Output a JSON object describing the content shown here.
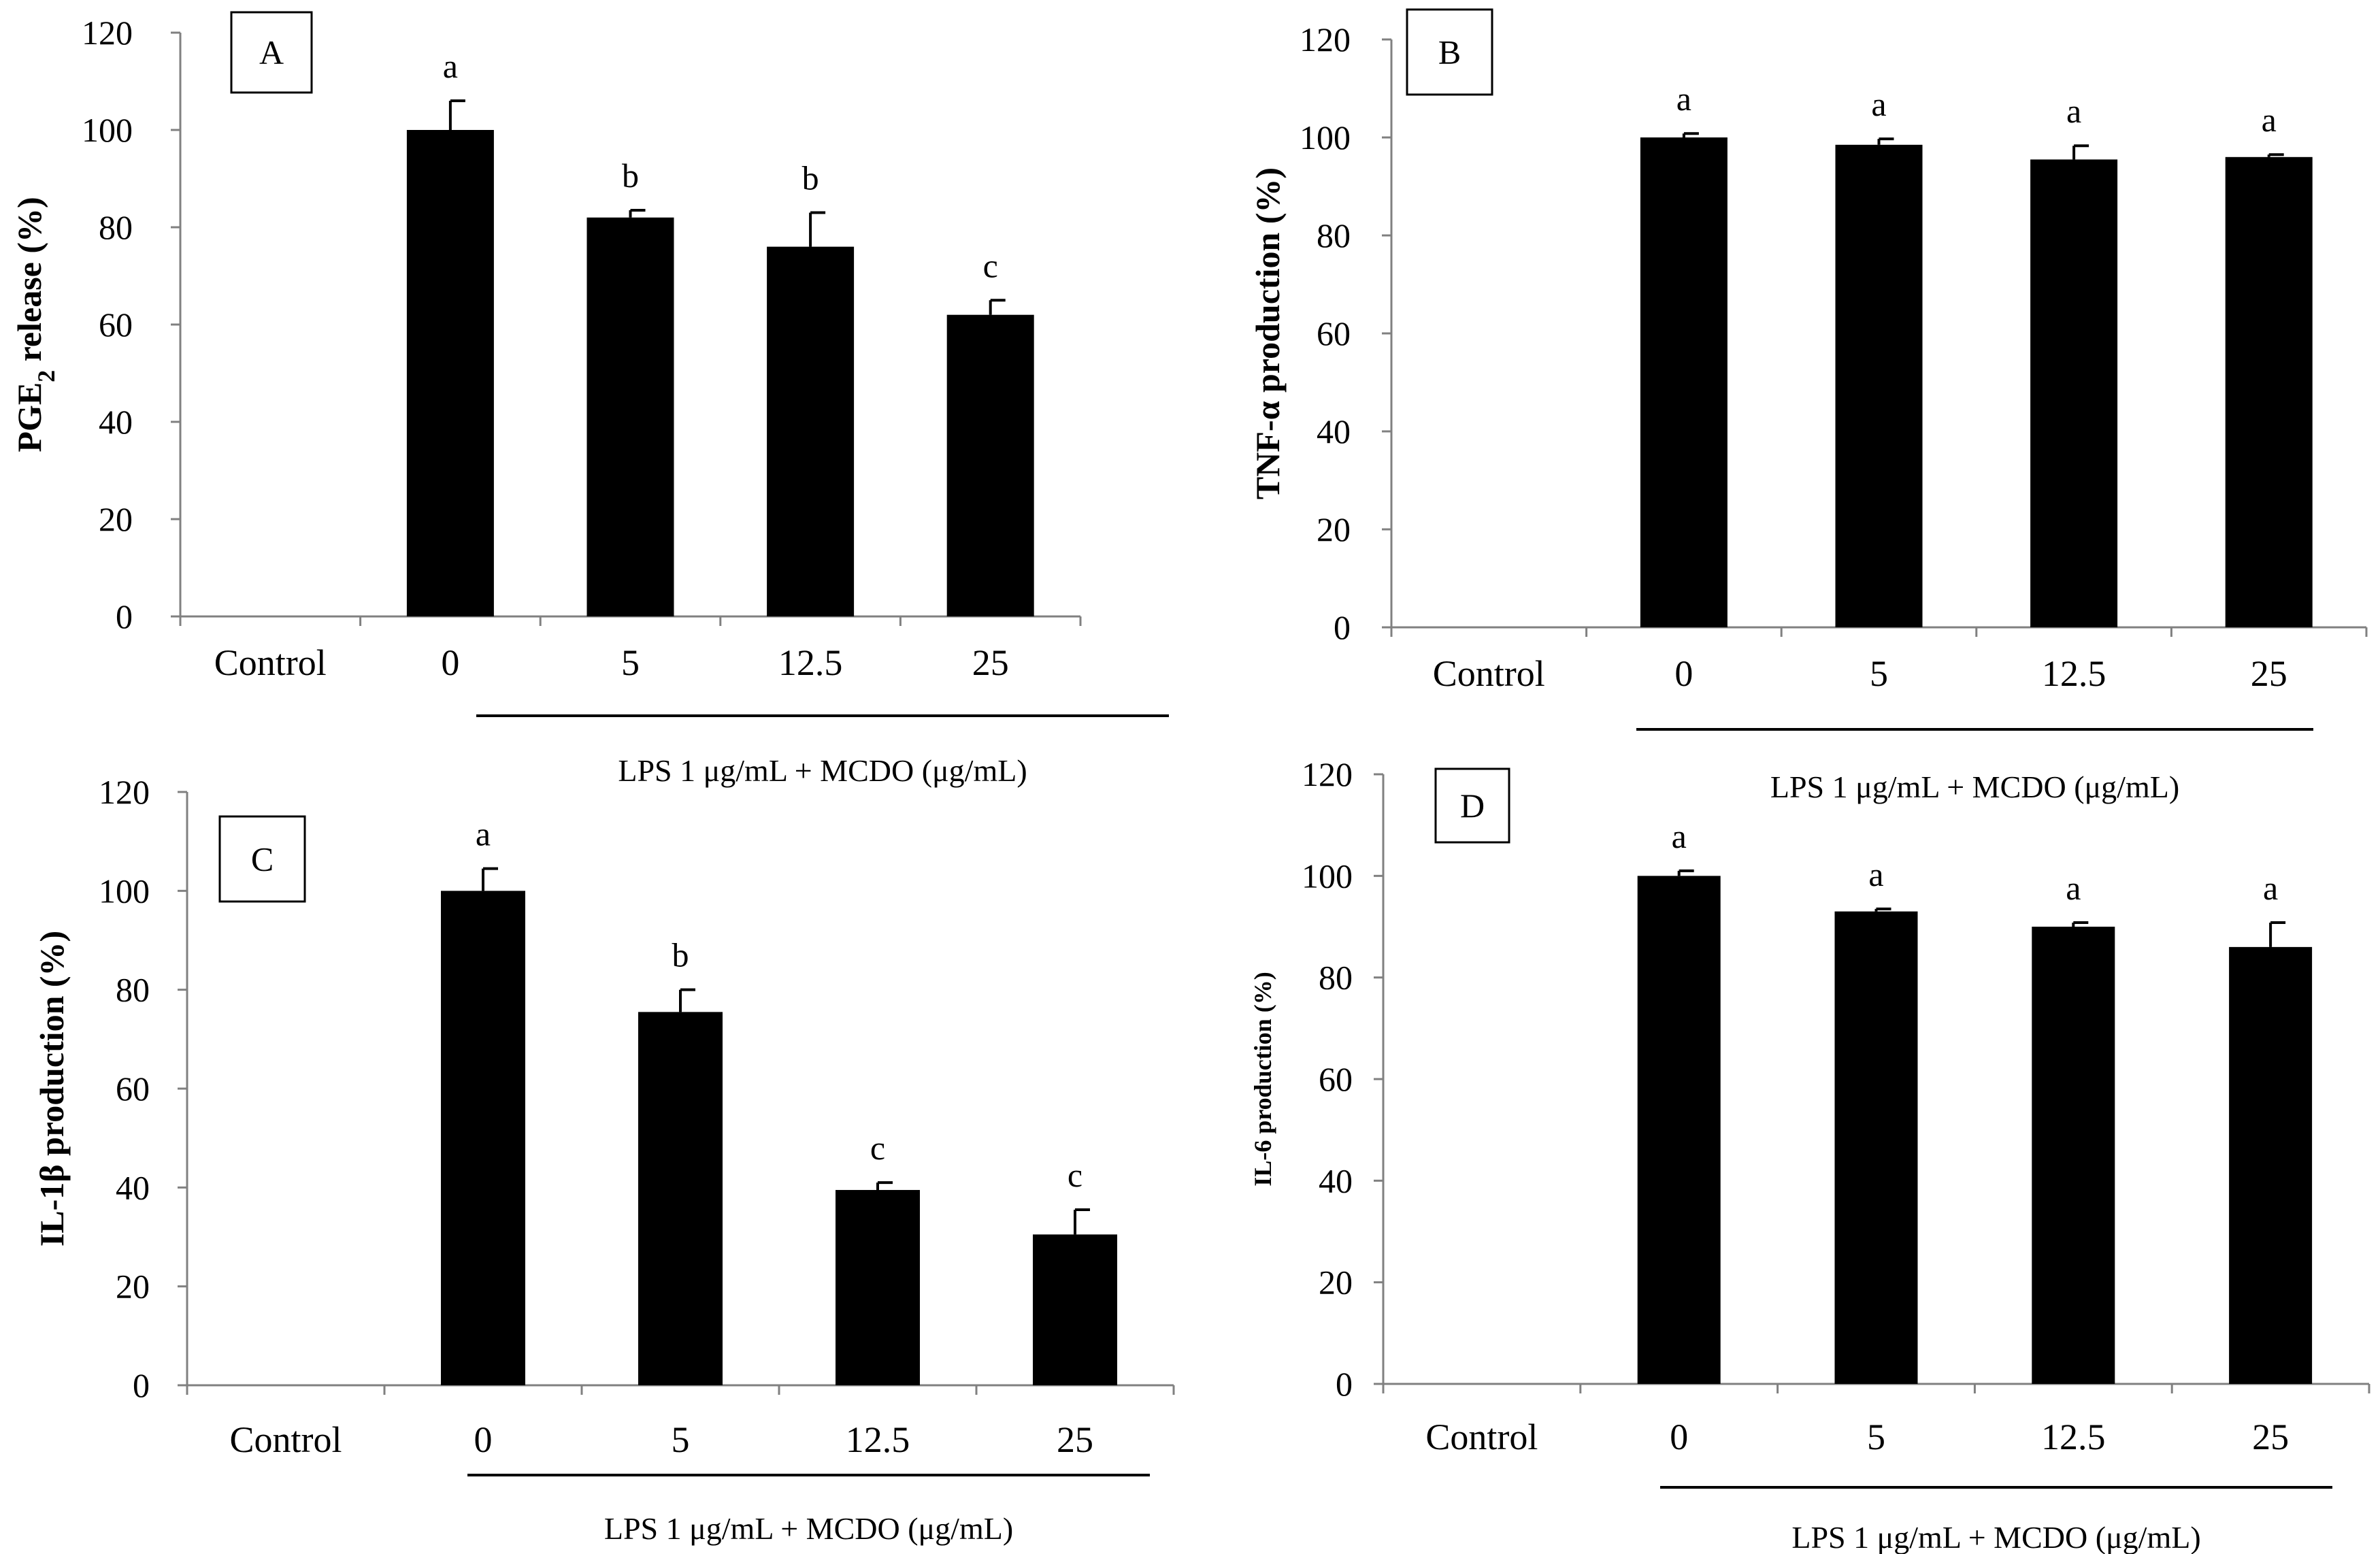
{
  "chart_data": [
    {
      "type": "bar",
      "panel": "A",
      "ylabel_main": "PGE",
      "ylabel_sub": "2",
      "ylabel_rest": " release (%)",
      "categories": [
        "Control",
        "0",
        "5",
        "12.5",
        "25"
      ],
      "values": [
        null,
        100,
        82,
        76,
        62
      ],
      "errors": [
        null,
        6,
        1.5,
        7,
        3
      ],
      "letters": [
        "",
        "a",
        "b",
        "b",
        "c"
      ],
      "ylim": [
        0,
        120
      ],
      "yticks": [
        0,
        20,
        40,
        60,
        80,
        100,
        120
      ],
      "group_label": "LPS 1 μg/mL + MCDO (μg/mL)"
    },
    {
      "type": "bar",
      "panel": "B",
      "ylabel_main": "TNF-α production (%)",
      "categories": [
        "Control",
        "0",
        "5",
        "12.5",
        "25"
      ],
      "values": [
        null,
        100,
        98.5,
        95.5,
        96
      ],
      "errors": [
        null,
        0.8,
        1.2,
        2.8,
        0.5
      ],
      "letters": [
        "",
        "a",
        "a",
        "a",
        "a"
      ],
      "ylim": [
        0,
        120
      ],
      "yticks": [
        0,
        20,
        40,
        60,
        80,
        100,
        120
      ],
      "group_label": "LPS 1 μg/mL + MCDO (μg/mL)"
    },
    {
      "type": "bar",
      "panel": "C",
      "ylabel_main": "IL-1β production (%)",
      "categories": [
        "Control",
        "0",
        "5",
        "12.5",
        "25"
      ],
      "values": [
        null,
        100,
        75.5,
        39.5,
        30.5
      ],
      "errors": [
        null,
        4.5,
        4.5,
        1.5,
        5
      ],
      "letters": [
        "",
        "a",
        "b",
        "c",
        "c"
      ],
      "ylim": [
        0,
        120
      ],
      "yticks": [
        0,
        20,
        40,
        60,
        80,
        100,
        120
      ],
      "group_label": "LPS 1 μg/mL + MCDO (μg/mL)"
    },
    {
      "type": "bar",
      "panel": "D",
      "ylabel_main": "IL-6 production (%)",
      "categories": [
        "Control",
        "0",
        "5",
        "12.5",
        "25"
      ],
      "values": [
        null,
        100,
        93,
        90,
        86
      ],
      "errors": [
        null,
        1,
        0.5,
        0.8,
        4.8
      ],
      "letters": [
        "",
        "a",
        "a",
        "a",
        "a"
      ],
      "ylim": [
        0,
        120
      ],
      "yticks": [
        0,
        20,
        40,
        60,
        80,
        100,
        120
      ],
      "group_label": "LPS 1 μg/mL + MCDO (μg/mL)"
    }
  ]
}
